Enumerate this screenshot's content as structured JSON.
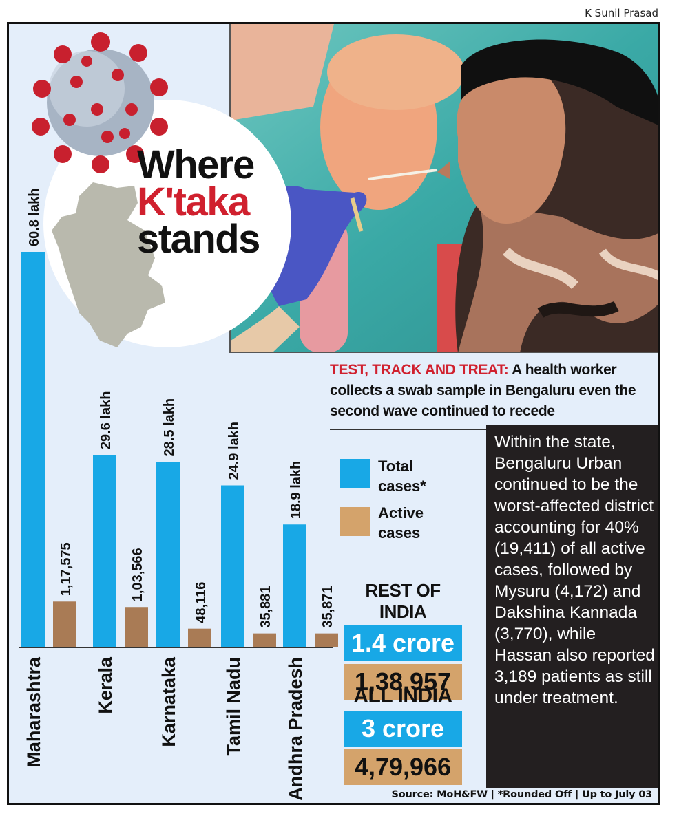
{
  "credit": "K Sunil Prasad",
  "title": {
    "line1": "Where",
    "line2": "K'taka",
    "line3": "stands"
  },
  "caption": {
    "lead": "TEST, TRACK AND TREAT:",
    "text": "A health worker collects a swab sample in Bengaluru even the second wave continued to recede"
  },
  "legend": {
    "total": "Total cases*",
    "active": "Active cases"
  },
  "colors": {
    "total": "#18a8e6",
    "active": "#a97b55",
    "accent": "#d0202e",
    "background": "#e4eefa"
  },
  "chart_data": {
    "type": "bar",
    "categories": [
      "Maharashtra",
      "Kerala",
      "Karnataka",
      "Tamil Nadu",
      "Andhra Pradesh"
    ],
    "series": [
      {
        "name": "Total cases*",
        "values": [
          6080000,
          2960000,
          2850000,
          2490000,
          1890000
        ],
        "labels": [
          "60.8 lakh",
          "29.6 lakh",
          "28.5 lakh",
          "24.9 lakh",
          "18.9 lakh"
        ]
      },
      {
        "name": "Active cases",
        "values": [
          117575,
          103566,
          48116,
          35881,
          35871
        ],
        "labels": [
          "1,17,575",
          "1,03,566",
          "48,116",
          "35,881",
          "35,871"
        ]
      }
    ],
    "title": "Where K'taka stands",
    "xlabel": "",
    "ylabel": "",
    "grid": false
  },
  "rest_of_india": {
    "label": "REST OF INDIA",
    "total": "1.4 crore",
    "active": "1,38,957"
  },
  "all_india": {
    "label": "ALL INDIA",
    "total": "3 crore",
    "active": "4,79,966"
  },
  "info": "Within the state, Bengaluru Urban continued to be the worst-affected district accounting for 40% (19,411) of all active cases, followed by Mysuru (4,172) and Dakshina Kannada (3,770), while Hassan also reported 3,189 patients as still under treatment.",
  "source": "Source: MoH&FW | *Rounded Off | Up to July 03"
}
